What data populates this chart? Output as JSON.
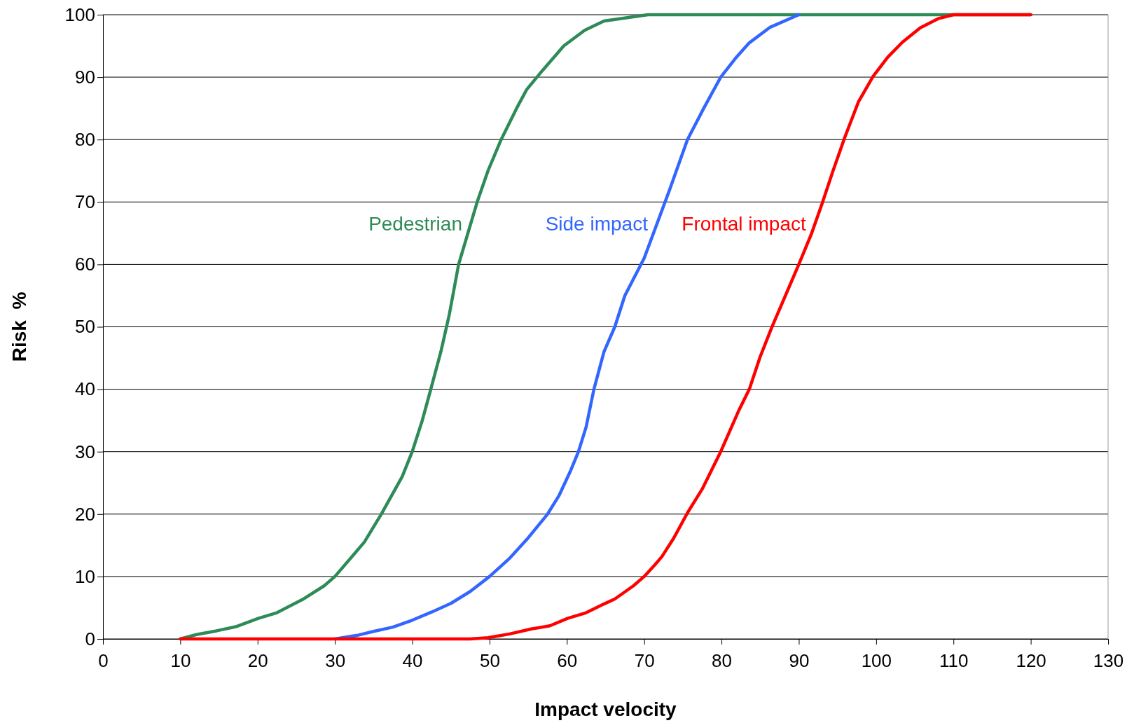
{
  "chart_data": {
    "type": "line",
    "xlabel": "Impact velocity",
    "ylabel": "Risk  %",
    "xlim": [
      0,
      130
    ],
    "xticks": [
      0,
      10,
      20,
      30,
      40,
      50,
      60,
      70,
      80,
      90,
      100,
      110,
      120,
      130
    ],
    "ylim": [
      0,
      100
    ],
    "yticks": [
      0,
      10,
      20,
      30,
      40,
      50,
      60,
      70,
      80,
      90,
      100
    ],
    "grid": "y",
    "marker": "none",
    "line_style": "solid",
    "legend": false,
    "series": [
      {
        "name": "Pedestrian",
        "color": "#2e8b57",
        "x": [
          10,
          12.1,
          14.7,
          17.3,
          20.1,
          22.5,
          25.8,
          28.6,
          30,
          33.8,
          36,
          38.7,
          40,
          41.3,
          42.4,
          43.7,
          44.8,
          46,
          48.4,
          49.8,
          51.5,
          53.5,
          54.8,
          56.8,
          59.6,
          62.3,
          64.8,
          70.5,
          80,
          90,
          120
        ],
        "values": [
          0,
          0.7,
          1.3,
          2,
          3.3,
          4.2,
          6.3,
          8.5,
          10,
          15.5,
          20,
          26,
          30,
          35,
          40,
          46,
          52,
          60,
          70,
          75,
          80,
          85,
          88,
          91,
          95,
          97.5,
          99,
          100,
          100,
          100,
          100
        ]
      },
      {
        "name": "Side impact",
        "color": "#3366ff",
        "x": [
          30,
          33,
          35,
          37.5,
          40,
          42.5,
          45,
          47.5,
          50,
          52.5,
          55,
          57.5,
          59,
          60.5,
          61.5,
          62.5,
          63.5,
          64.8,
          66.2,
          67.5,
          70,
          71.5,
          73.3,
          75.6,
          77.7,
          79.9,
          81.8,
          83.6,
          86.3,
          90
        ],
        "values": [
          0,
          0.6,
          1.2,
          1.9,
          3,
          4.3,
          5.7,
          7.6,
          10,
          12.8,
          16.2,
          20,
          23,
          27,
          30,
          34,
          40,
          46,
          50,
          55,
          61,
          66,
          72,
          80,
          85,
          90,
          93,
          95.5,
          98,
          100
        ]
      },
      {
        "name": "Frontal impact",
        "color": "#ff0000",
        "x": [
          10,
          47.5,
          49.8,
          52.6,
          55.4,
          57.8,
          60.1,
          62.5,
          64.8,
          66.2,
          68.6,
          70,
          71.4,
          72.3,
          73.8,
          75.6,
          77.5,
          79.9,
          82.2,
          83.6,
          85,
          86.5,
          88.3,
          90,
          91.6,
          93,
          94.4,
          95.9,
          97.7,
          99.6,
          101.5,
          103.4,
          105.7,
          108.1,
          110,
          120
        ],
        "values": [
          0,
          0,
          0.2,
          0.8,
          1.6,
          2.1,
          3.3,
          4.2,
          5.6,
          6.4,
          8.5,
          10,
          11.9,
          13.2,
          16.1,
          20.2,
          24,
          30,
          36.5,
          40,
          45.2,
          49.9,
          55.1,
          60,
          64.8,
          69.7,
          74.9,
          80.2,
          86,
          90.1,
          93.2,
          95.6,
          97.9,
          99.4,
          100,
          100
        ]
      }
    ]
  }
}
